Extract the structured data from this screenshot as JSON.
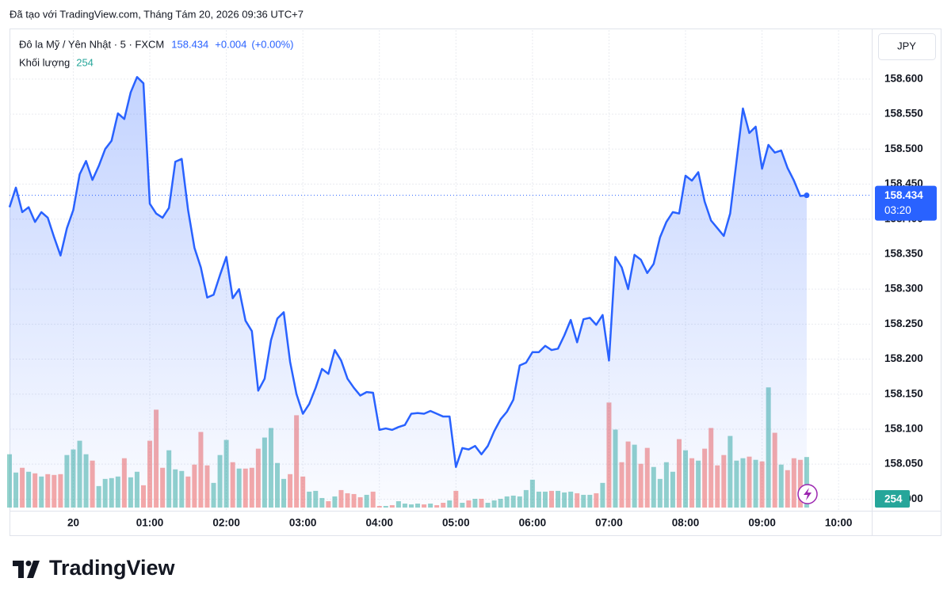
{
  "header": {
    "caption": "Đã tạo với TradingView.com, Tháng Tám 20, 2026 09:36 UTC+7"
  },
  "footer": {
    "brand": "TradingView"
  },
  "chart_data": {
    "type": "line",
    "currency": "JPY",
    "change": "+0.004",
    "change_pct": "(+0.00%)",
    "countdown": "03:20",
    "x": [
      "23:10",
      "23:15",
      "23:20",
      "23:25",
      "23:30",
      "23:35",
      "23:40",
      "23:45",
      "23:50",
      "23:55",
      "00:00",
      "00:05",
      "00:10",
      "00:15",
      "00:20",
      "00:25",
      "00:30",
      "00:35",
      "00:40",
      "00:45",
      "00:50",
      "00:55",
      "01:00",
      "01:05",
      "01:10",
      "01:15",
      "01:20",
      "01:25",
      "01:30",
      "01:35",
      "01:40",
      "01:45",
      "01:50",
      "01:55",
      "02:00",
      "02:05",
      "02:10",
      "02:15",
      "02:20",
      "02:25",
      "02:30",
      "02:35",
      "02:40",
      "02:45",
      "02:50",
      "02:55",
      "03:00",
      "03:05",
      "03:10",
      "03:15",
      "03:20",
      "03:25",
      "03:30",
      "03:35",
      "03:40",
      "03:45",
      "03:50",
      "03:55",
      "04:00",
      "04:05",
      "04:10",
      "04:15",
      "04:20",
      "04:25",
      "04:30",
      "04:35",
      "04:40",
      "04:45",
      "04:50",
      "04:55",
      "05:00",
      "05:05",
      "05:10",
      "05:15",
      "05:20",
      "05:25",
      "05:30",
      "05:35",
      "05:40",
      "05:45",
      "05:50",
      "05:55",
      "06:00",
      "06:05",
      "06:10",
      "06:15",
      "06:20",
      "06:25",
      "06:30",
      "06:35",
      "06:40",
      "06:45",
      "06:50",
      "06:55",
      "07:00",
      "07:05",
      "07:10",
      "07:15",
      "07:20",
      "07:25",
      "07:30",
      "07:35",
      "07:40",
      "07:45",
      "07:50",
      "07:55",
      "08:00",
      "08:05",
      "08:10",
      "08:15",
      "08:20",
      "08:25",
      "08:30",
      "08:35",
      "08:40",
      "08:45",
      "08:50",
      "08:55",
      "09:00",
      "09:05",
      "09:10",
      "09:15",
      "09:20",
      "09:25",
      "09:30",
      "09:35"
    ],
    "xlim": [
      "23:10",
      "10:26"
    ],
    "xticks": [
      {
        "value": "00:00",
        "label": "20"
      },
      "01:00",
      "02:00",
      "03:00",
      "04:00",
      "05:00",
      "06:00",
      "07:00",
      "08:00",
      "09:00",
      "10:00"
    ],
    "ylim": [
      157.988,
      158.67
    ],
    "yticks": [
      {
        "value": 158.0,
        "label": "158.000"
      },
      {
        "value": 158.05,
        "label": "158.050"
      },
      {
        "value": 158.1,
        "label": "158.100"
      },
      {
        "value": 158.15,
        "label": "158.150"
      },
      {
        "value": 158.2,
        "label": "158.200"
      },
      {
        "value": 158.25,
        "label": "158.250"
      },
      {
        "value": 158.3,
        "label": "158.300"
      },
      {
        "value": 158.35,
        "label": "158.350"
      },
      {
        "value": 158.4,
        "label": "158.400"
      },
      {
        "value": 158.45,
        "label": "158.450"
      },
      {
        "value": 158.5,
        "label": "158.500"
      },
      {
        "value": 158.55,
        "label": "158.550"
      },
      {
        "value": 158.6,
        "label": "158.600"
      }
    ],
    "y2lim": [
      0,
      2400
    ],
    "grid": true,
    "series": [
      {
        "name": "Đô la Mỹ / Yên Nhật · 5 · FXCM",
        "color": "#2962ff",
        "values": [
          158.417,
          158.445,
          158.41,
          158.417,
          158.396,
          158.41,
          158.402,
          158.374,
          158.348,
          158.387,
          158.413,
          158.464,
          158.483,
          158.456,
          158.476,
          158.5,
          158.512,
          158.551,
          158.543,
          158.581,
          158.603,
          158.594,
          158.422,
          158.408,
          158.402,
          158.416,
          158.482,
          158.486,
          158.413,
          158.359,
          158.331,
          158.288,
          158.292,
          158.32,
          158.346,
          158.287,
          158.3,
          158.255,
          158.24,
          158.155,
          158.172,
          158.227,
          158.258,
          158.267,
          158.196,
          158.15,
          158.122,
          158.136,
          158.159,
          158.186,
          158.179,
          158.213,
          158.198,
          158.172,
          158.159,
          158.148,
          158.153,
          158.152,
          158.099,
          158.101,
          158.099,
          158.103,
          158.106,
          158.122,
          158.123,
          158.122,
          158.126,
          158.122,
          158.118,
          158.118,
          158.046,
          158.073,
          158.071,
          158.076,
          158.064,
          158.076,
          158.097,
          158.114,
          158.125,
          158.142,
          158.191,
          158.195,
          158.21,
          158.21,
          158.219,
          158.213,
          158.215,
          158.234,
          158.256,
          158.224,
          158.257,
          158.259,
          158.249,
          158.263,
          158.198,
          158.346,
          158.331,
          158.3,
          158.349,
          158.342,
          158.323,
          158.336,
          158.374,
          158.396,
          158.41,
          158.408,
          158.462,
          158.455,
          158.467,
          158.425,
          158.398,
          158.387,
          158.376,
          158.408,
          158.483,
          158.558,
          158.523,
          158.532,
          158.472,
          158.506,
          158.495,
          158.498,
          158.473,
          158.455,
          158.433,
          158.434
        ]
      },
      {
        "name": "Khối lượng",
        "type": "bar",
        "axis": "y2",
        "color": "#26a69a",
        "up_color": "rgba(38,166,154,0.5)",
        "down_color": "rgba(239,83,80,0.5)",
        "values": [
          268,
          176,
          200,
          180,
          172,
          156,
          168,
          164,
          168,
          264,
          292,
          336,
          268,
          236,
          108,
          144,
          148,
          156,
          248,
          152,
          180,
          112,
          336,
          492,
          200,
          288,
          192,
          184,
          156,
          216,
          380,
          212,
          124,
          264,
          340,
          228,
          196,
          196,
          200,
          296,
          352,
          400,
          224,
          144,
          168,
          464,
          156,
          80,
          84,
          48,
          32,
          56,
          88,
          72,
          68,
          52,
          64,
          80,
          8,
          8,
          12,
          32,
          20,
          16,
          20,
          16,
          20,
          12,
          24,
          36,
          84,
          24,
          36,
          44,
          44,
          24,
          36,
          44,
          56,
          60,
          56,
          88,
          140,
          80,
          80,
          84,
          84,
          76,
          80,
          72,
          64,
          64,
          72,
          124,
          528,
          392,
          228,
          332,
          316,
          220,
          300,
          204,
          144,
          228,
          180,
          344,
          288,
          248,
          236,
          296,
          400,
          212,
          264,
          360,
          236,
          248,
          256,
          240,
          232,
          604,
          376,
          216,
          188,
          248,
          240,
          254
        ]
      }
    ]
  }
}
